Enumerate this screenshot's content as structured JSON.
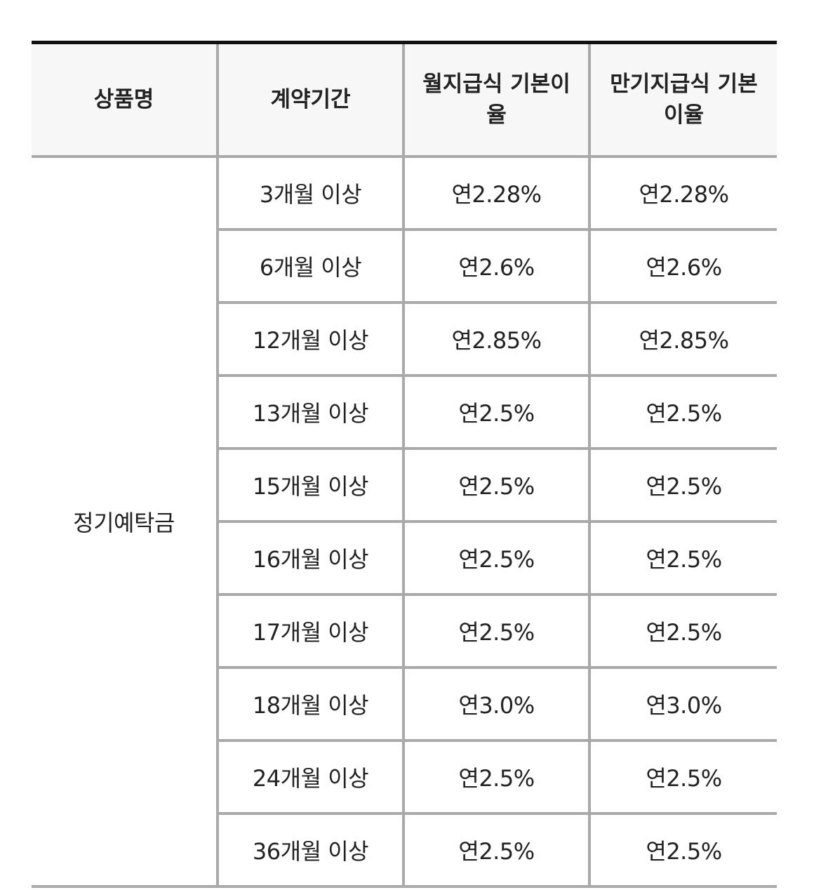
{
  "table": {
    "headers": {
      "product": "상품명",
      "term": "계약기간",
      "monthly_rate": "월지급식 기본이율",
      "maturity_rate": "만기지급식 기본이율"
    },
    "product_name": "정기예탁금",
    "rows": [
      {
        "term": "3개월 이상",
        "monthly": "연2.28%",
        "maturity": "연2.28%"
      },
      {
        "term": "6개월 이상",
        "monthly": "연2.6%",
        "maturity": "연2.6%"
      },
      {
        "term": "12개월 이상",
        "monthly": "연2.85%",
        "maturity": "연2.85%"
      },
      {
        "term": "13개월 이상",
        "monthly": "연2.5%",
        "maturity": "연2.5%"
      },
      {
        "term": "15개월 이상",
        "monthly": "연2.5%",
        "maturity": "연2.5%"
      },
      {
        "term": "16개월 이상",
        "monthly": "연2.5%",
        "maturity": "연2.5%"
      },
      {
        "term": "17개월 이상",
        "monthly": "연2.5%",
        "maturity": "연2.5%"
      },
      {
        "term": "18개월 이상",
        "monthly": "연3.0%",
        "maturity": "연3.0%"
      },
      {
        "term": "24개월 이상",
        "monthly": "연2.5%",
        "maturity": "연2.5%"
      },
      {
        "term": "36개월 이상",
        "monthly": "연2.5%",
        "maturity": "연2.5%"
      }
    ]
  }
}
